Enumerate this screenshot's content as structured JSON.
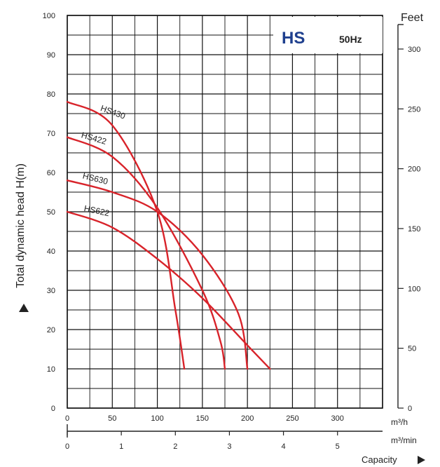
{
  "chart_data": {
    "type": "line",
    "brand": "HS",
    "frequency": "50Hz",
    "ylabel": "Total dynamic head H(m)",
    "ylabel_right": "Feet",
    "xlabel": "Capacity",
    "x_unit_primary": "m³/h",
    "x_unit_secondary": "m³/min",
    "xlim": [
      0,
      350
    ],
    "ylim": [
      0,
      100
    ],
    "x_ticks": [
      "0",
      "50",
      "100",
      "150",
      "200",
      "250",
      "300"
    ],
    "y_ticks": [
      "0",
      "10",
      "20",
      "30",
      "40",
      "50",
      "60",
      "70",
      "80",
      "90",
      "100"
    ],
    "x2_ticks": [
      "0",
      "1",
      "2",
      "3",
      "4",
      "5"
    ],
    "y2_ticks": [
      "0",
      "50",
      "100",
      "150",
      "200",
      "250",
      "300"
    ],
    "grid": true,
    "colors": {
      "curve": "#d8232a",
      "brand": "#1e3f8e",
      "grid": "#111111"
    },
    "series": [
      {
        "name": "HS430",
        "x": [
          0,
          50,
          100,
          120,
          130
        ],
        "y": [
          78,
          72,
          50,
          25,
          10
        ]
      },
      {
        "name": "HS422",
        "x": [
          0,
          50,
          100,
          150,
          170,
          175
        ],
        "y": [
          69,
          64,
          51,
          30,
          17,
          10
        ]
      },
      {
        "name": "HS630",
        "x": [
          0,
          50,
          100,
          150,
          190,
          200
        ],
        "y": [
          58,
          55,
          50,
          39,
          24,
          10
        ]
      },
      {
        "name": "HS622",
        "x": [
          0,
          50,
          100,
          150,
          200,
          225
        ],
        "y": [
          50,
          46,
          38,
          28,
          16,
          10
        ]
      }
    ]
  }
}
